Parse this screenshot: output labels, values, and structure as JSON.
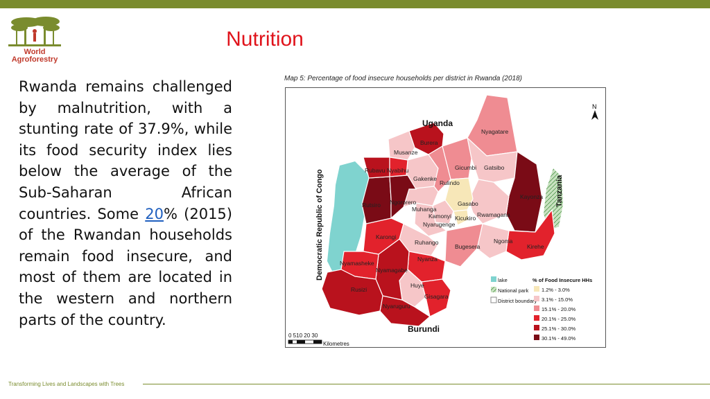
{
  "brand": {
    "logo_line1": "World",
    "logo_line2": "Agroforestry",
    "bar_color": "#7a8c2e",
    "logo_color": "#7a8c2e",
    "logo_text_color": "#c0392b"
  },
  "slide": {
    "title": "Nutrition",
    "title_color": "#e0131b",
    "body_before_link": "Rwanda remains challenged by malnutrition, with a stunting rate of 37.9%, while its food security index lies below the average of the Sub-Saharan African countries. Some ",
    "body_link": "20",
    "body_after_link": "% (2015) of the Rwandan households remain food insecure, and most of them are located in the western and northern parts of the country.",
    "link_color": "#1f5fbf"
  },
  "map": {
    "caption": "Map 5: Percentage of food insecure households per district in Rwanda (2018)",
    "north_label": "N",
    "neighbors": {
      "north": "Uganda",
      "south": "Burundi",
      "east": "Tanzania",
      "west": "Democratic Republic of Congo"
    },
    "scale": {
      "ticks": "0 510  20  30",
      "unit": "Kilometres"
    },
    "colors": {
      "lake": "#7fd3cf",
      "park": "#c8e2c0",
      "c1": "#f7e7b8",
      "c2": "#f6c6c8",
      "c3": "#ef8c92",
      "c4": "#e2222c",
      "c5": "#b9121d",
      "c6": "#7a0b16"
    },
    "districts": [
      {
        "name": "Nyagatare",
        "cls": "c3"
      },
      {
        "name": "Gatsibo",
        "cls": "c2"
      },
      {
        "name": "Kayonza",
        "cls": "c6"
      },
      {
        "name": "Kirehe",
        "cls": "c4"
      },
      {
        "name": "Ngoma",
        "cls": "c2"
      },
      {
        "name": "Bugesera",
        "cls": "c3"
      },
      {
        "name": "Rwamagana",
        "cls": "c2"
      },
      {
        "name": "Gicumbi",
        "cls": "c3"
      },
      {
        "name": "Burera",
        "cls": "c5"
      },
      {
        "name": "Musanze",
        "cls": "c2"
      },
      {
        "name": "Gakenke",
        "cls": "c2"
      },
      {
        "name": "Rulindo",
        "cls": "c3"
      },
      {
        "name": "Gasabo",
        "cls": "c1"
      },
      {
        "name": "Kicukiro",
        "cls": "c1"
      },
      {
        "name": "Nyarugenge",
        "cls": "c2"
      },
      {
        "name": "Kamonyi",
        "cls": "c2"
      },
      {
        "name": "Muhanga",
        "cls": "c2"
      },
      {
        "name": "Ruhango",
        "cls": "c2"
      },
      {
        "name": "Nyanza",
        "cls": "c4"
      },
      {
        "name": "Huye",
        "cls": "c2"
      },
      {
        "name": "Gisagara",
        "cls": "c4"
      },
      {
        "name": "Nyaruguru",
        "cls": "c5"
      },
      {
        "name": "Nyamagabe",
        "cls": "c5"
      },
      {
        "name": "Karongi",
        "cls": "c4"
      },
      {
        "name": "Nyamasheke",
        "cls": "c4"
      },
      {
        "name": "Rusizi",
        "cls": "c5"
      },
      {
        "name": "Rutsiro",
        "cls": "c6"
      },
      {
        "name": "Ngororero",
        "cls": "c6"
      },
      {
        "name": "Rubavu",
        "cls": "c5"
      },
      {
        "name": "Nyabihu",
        "cls": "c4"
      }
    ],
    "legend": {
      "lake": "lake",
      "park": "National park",
      "boundary": "District boundary",
      "title": "% of Food Insecure HHs",
      "classes": [
        {
          "label": "1.2% - 3.0%",
          "cls": "c1"
        },
        {
          "label": "3.1% - 15.0%",
          "cls": "c2"
        },
        {
          "label": "15.1% - 20.0%",
          "cls": "c3"
        },
        {
          "label": "20.1% - 25.0%",
          "cls": "c4"
        },
        {
          "label": "25.1% - 30.0%",
          "cls": "c5"
        },
        {
          "label": "30.1% - 49.0%",
          "cls": "c6"
        }
      ]
    }
  },
  "footer": {
    "tagline": "Transforming Lives and Landscapes with Trees",
    "color": "#7a8c2e"
  }
}
